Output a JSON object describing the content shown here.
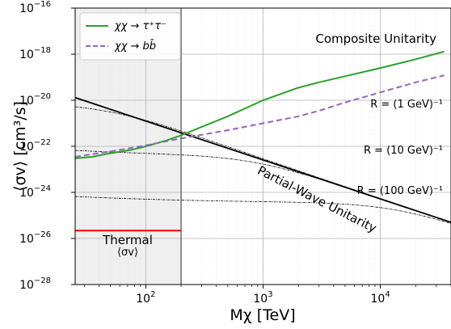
{
  "chart_data": {
    "type": "line",
    "xlabel": "Mχ [TeV]",
    "ylabel": "⟨σv⟩ [cm³/s]",
    "xscale": "log",
    "yscale": "log",
    "xlim": [
      25,
      40000
    ],
    "ylim": [
      1e-28,
      1e-16
    ],
    "x_ticks": [
      {
        "value": 100,
        "label": "10",
        "exp": "2"
      },
      {
        "value": 1000,
        "label": "10",
        "exp": "3"
      },
      {
        "value": 10000,
        "label": "10",
        "exp": "4"
      }
    ],
    "y_ticks": [
      {
        "value": 1e-28,
        "label": "10",
        "exp": "−28"
      },
      {
        "value": 1e-26,
        "label": "10",
        "exp": "−26"
      },
      {
        "value": 1e-24,
        "label": "10",
        "exp": "−24"
      },
      {
        "value": 1e-22,
        "label": "10",
        "exp": "−22"
      },
      {
        "value": 1e-20,
        "label": "10",
        "exp": "−20"
      },
      {
        "value": 1e-18,
        "label": "10",
        "exp": "−18"
      },
      {
        "value": 1e-16,
        "label": "10",
        "exp": "−16"
      }
    ],
    "grid": true,
    "legend": {
      "position": "top-left",
      "entries": [
        {
          "label": "χχ → τ⁺τ⁻",
          "series": 0
        },
        {
          "label": "χχ → bb̄",
          "series": 1
        }
      ]
    },
    "series": [
      {
        "name": "χχ → τ⁺τ⁻",
        "color": "#2ca02c",
        "style": "solid",
        "x": [
          25,
          35,
          50,
          75,
          100,
          150,
          200,
          300,
          500,
          1000,
          2000,
          3000,
          5000,
          10000,
          20000,
          35000
        ],
        "y": [
          3e-23,
          3.5e-23,
          5e-23,
          7e-23,
          1e-22,
          1.8e-22,
          3e-22,
          7e-22,
          2e-21,
          1e-20,
          3.5e-20,
          6e-20,
          1.1e-19,
          2.5e-19,
          6e-19,
          1.3e-18
        ]
      },
      {
        "name": "χχ → bb̄",
        "color": "#9467bd",
        "style": "dashed",
        "x": [
          25,
          50,
          100,
          200,
          500,
          1000,
          2000,
          3000,
          5000,
          10000,
          20000,
          35000
        ],
        "y": [
          3.5e-23,
          6e-23,
          1.1e-22,
          2.2e-22,
          5e-22,
          1e-21,
          2e-21,
          3.5e-21,
          8e-21,
          2.2e-20,
          6e-20,
          1.2e-19
        ]
      }
    ],
    "unitarity": {
      "label": "Partial-Wave Unitarity",
      "color": "#000000",
      "x": [
        25,
        40000
      ],
      "y": [
        1.3e-20,
        5e-26
      ]
    },
    "radius_curves": [
      {
        "label": "R = (1 GeV)⁻¹",
        "plateau": 3.5e-21
      },
      {
        "label": "R = (10 GeV)⁻¹",
        "plateau": 3.5e-23
      },
      {
        "label": "R = (100 GeV)⁻¹",
        "plateau": 3.5e-25
      }
    ],
    "thermal": {
      "label_line1": "Thermal",
      "label_line2": "⟨σv⟩",
      "value": 2.2e-26,
      "x": [
        25,
        200
      ],
      "color": "#ff0000"
    },
    "shaded_region": {
      "x": [
        25,
        200
      ],
      "color": "#efefef",
      "boundary_color": "#777777"
    },
    "annotation_composite": "Composite Unitarity"
  }
}
